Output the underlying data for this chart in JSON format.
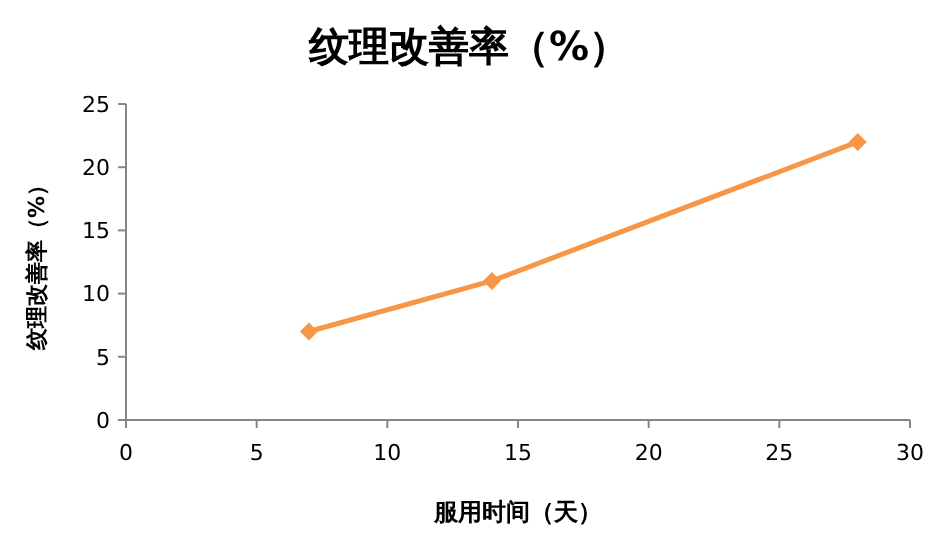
{
  "chart_data": {
    "type": "line",
    "title": "纹理改善率（%）",
    "xlabel": "服用时间（天）",
    "ylabel": "纹理改善率（%）",
    "x": [
      7,
      14,
      28
    ],
    "series": [
      {
        "color": "#f79646",
        "values": [
          7,
          11,
          22
        ]
      }
    ],
    "xlim": [
      0,
      30
    ],
    "xticks": [
      0,
      5,
      10,
      15,
      20,
      25,
      30
    ],
    "ylim": [
      0,
      25
    ],
    "yticks": [
      0,
      5,
      10,
      15,
      20,
      25
    ],
    "grid": false,
    "marker": "diamond",
    "line_style": "solid"
  }
}
